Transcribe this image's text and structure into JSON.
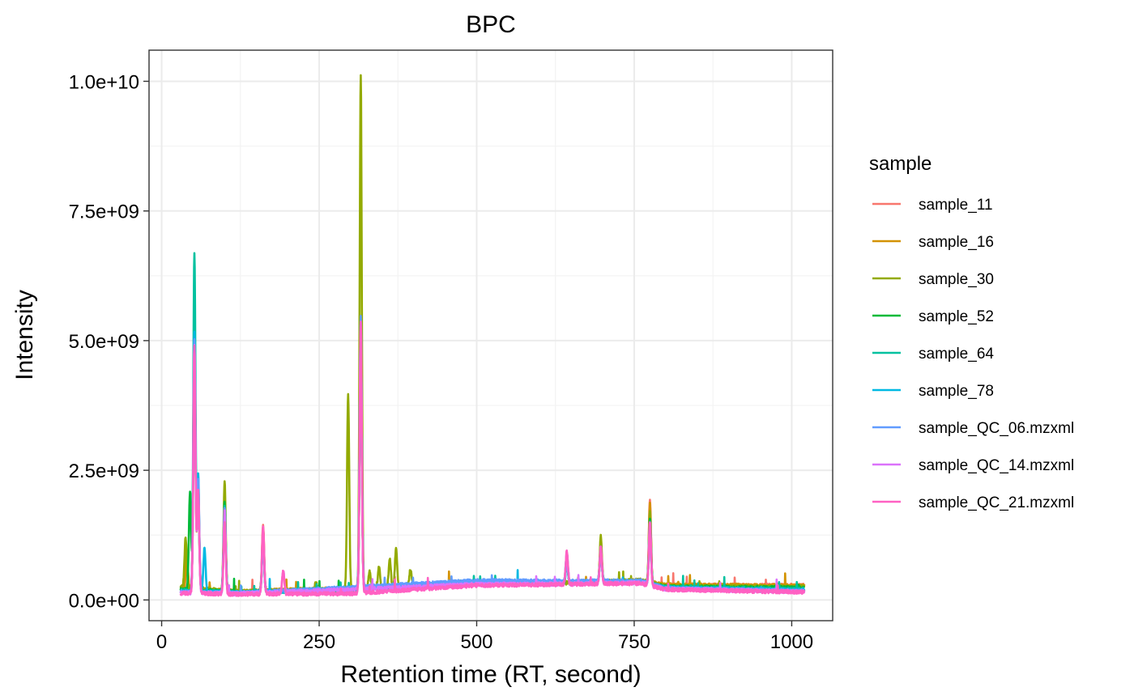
{
  "chart_data": {
    "type": "line",
    "title": "BPC",
    "xlabel": "Retention time (RT, second)",
    "ylabel": "Intensity",
    "xlim": [
      -20,
      1065
    ],
    "ylim": [
      -400000000,
      10600000000
    ],
    "x_ticks": [
      0,
      250,
      500,
      750,
      1000
    ],
    "x_tick_labels": [
      "0",
      "250",
      "500",
      "750",
      "1000"
    ],
    "y_ticks": [
      0,
      2500000000,
      5000000000,
      7500000000,
      10000000000
    ],
    "y_tick_labels": [
      "0.0e+00",
      "2.5e+09",
      "5.0e+09",
      "7.5e+09",
      "1.0e+10"
    ],
    "grid": true,
    "legend_title": "sample",
    "legend_position": "right",
    "series": [
      {
        "name": "sample_11",
        "color": "#F8766D",
        "baseline": [
          [
            30,
            200000000
          ],
          [
            120,
            150000000
          ],
          [
            300,
            200000000
          ],
          [
            500,
            330000000
          ],
          [
            650,
            320000000
          ],
          [
            760,
            360000000
          ],
          [
            800,
            280000000
          ],
          [
            1020,
            280000000
          ]
        ],
        "peaks": [
          [
            40,
            800000000
          ],
          [
            52,
            4800000000
          ],
          [
            58,
            2100000000
          ],
          [
            100,
            1700000000
          ],
          [
            161,
            1450000000
          ],
          [
            316,
            5200000000
          ],
          [
            643,
            850000000
          ],
          [
            697,
            1000000000
          ],
          [
            775,
            1900000000
          ]
        ]
      },
      {
        "name": "sample_16",
        "color": "#D39200",
        "baseline": [
          [
            30,
            220000000
          ],
          [
            120,
            170000000
          ],
          [
            300,
            220000000
          ],
          [
            500,
            340000000
          ],
          [
            650,
            330000000
          ],
          [
            760,
            370000000
          ],
          [
            800,
            290000000
          ],
          [
            1020,
            270000000
          ]
        ],
        "peaks": [
          [
            40,
            900000000
          ],
          [
            52,
            4600000000
          ],
          [
            58,
            2000000000
          ],
          [
            100,
            1800000000
          ],
          [
            161,
            1350000000
          ],
          [
            316,
            5100000000
          ],
          [
            643,
            800000000
          ],
          [
            697,
            1100000000
          ],
          [
            775,
            1800000000
          ]
        ]
      },
      {
        "name": "sample_30",
        "color": "#93AA00",
        "baseline": [
          [
            30,
            250000000
          ],
          [
            120,
            160000000
          ],
          [
            300,
            210000000
          ],
          [
            500,
            330000000
          ],
          [
            650,
            330000000
          ],
          [
            760,
            380000000
          ],
          [
            800,
            260000000
          ],
          [
            1020,
            250000000
          ]
        ],
        "peaks": [
          [
            38,
            1200000000
          ],
          [
            52,
            5000000000
          ],
          [
            58,
            1900000000
          ],
          [
            100,
            2300000000
          ],
          [
            161,
            1100000000
          ],
          [
            245,
            350000000
          ],
          [
            296,
            3950000000
          ],
          [
            316,
            10100000000
          ],
          [
            330,
            550000000
          ],
          [
            345,
            650000000
          ],
          [
            362,
            800000000
          ],
          [
            372,
            1000000000
          ],
          [
            395,
            600000000
          ],
          [
            697,
            1230000000
          ],
          [
            775,
            1700000000
          ]
        ]
      },
      {
        "name": "sample_52",
        "color": "#00BA38",
        "baseline": [
          [
            30,
            200000000
          ],
          [
            120,
            150000000
          ],
          [
            300,
            200000000
          ],
          [
            500,
            320000000
          ],
          [
            650,
            320000000
          ],
          [
            760,
            350000000
          ],
          [
            800,
            250000000
          ],
          [
            1020,
            230000000
          ]
        ],
        "peaks": [
          [
            45,
            2100000000
          ],
          [
            52,
            5500000000
          ],
          [
            58,
            2000000000
          ],
          [
            100,
            1900000000
          ],
          [
            161,
            1200000000
          ],
          [
            316,
            5300000000
          ],
          [
            643,
            700000000
          ],
          [
            697,
            1000000000
          ],
          [
            775,
            1600000000
          ]
        ]
      },
      {
        "name": "sample_64",
        "color": "#00C19F",
        "baseline": [
          [
            30,
            180000000
          ],
          [
            120,
            140000000
          ],
          [
            300,
            200000000
          ],
          [
            500,
            330000000
          ],
          [
            650,
            330000000
          ],
          [
            760,
            350000000
          ],
          [
            800,
            240000000
          ],
          [
            1020,
            200000000
          ]
        ],
        "peaks": [
          [
            52,
            6700000000
          ],
          [
            58,
            2200000000
          ],
          [
            100,
            1800000000
          ],
          [
            161,
            1200000000
          ],
          [
            316,
            5300000000
          ],
          [
            643,
            900000000
          ],
          [
            697,
            1000000000
          ],
          [
            775,
            1500000000
          ]
        ]
      },
      {
        "name": "sample_78",
        "color": "#00B9E3",
        "baseline": [
          [
            30,
            160000000
          ],
          [
            120,
            140000000
          ],
          [
            300,
            220000000
          ],
          [
            500,
            350000000
          ],
          [
            650,
            340000000
          ],
          [
            760,
            360000000
          ],
          [
            800,
            230000000
          ],
          [
            1020,
            180000000
          ]
        ],
        "peaks": [
          [
            52,
            5200000000
          ],
          [
            58,
            2400000000
          ],
          [
            68,
            1000000000
          ],
          [
            100,
            1700000000
          ],
          [
            161,
            1100000000
          ],
          [
            316,
            5400000000
          ],
          [
            643,
            700000000
          ],
          [
            697,
            900000000
          ],
          [
            775,
            1300000000
          ]
        ]
      },
      {
        "name": "sample_QC_06.mzxml",
        "color": "#619CFF",
        "baseline": [
          [
            30,
            150000000
          ],
          [
            120,
            130000000
          ],
          [
            300,
            240000000
          ],
          [
            500,
            370000000
          ],
          [
            650,
            360000000
          ],
          [
            760,
            370000000
          ],
          [
            800,
            220000000
          ],
          [
            1020,
            170000000
          ]
        ],
        "peaks": [
          [
            52,
            5000000000
          ],
          [
            58,
            2300000000
          ],
          [
            100,
            1800000000
          ],
          [
            161,
            1100000000
          ],
          [
            316,
            5500000000
          ],
          [
            643,
            700000000
          ],
          [
            697,
            900000000
          ],
          [
            775,
            1300000000
          ]
        ]
      },
      {
        "name": "sample_QC_14.mzxml",
        "color": "#DB72FB",
        "baseline": [
          [
            30,
            140000000
          ],
          [
            120,
            120000000
          ],
          [
            300,
            200000000
          ],
          [
            500,
            300000000
          ],
          [
            650,
            310000000
          ],
          [
            760,
            330000000
          ],
          [
            800,
            210000000
          ],
          [
            1020,
            160000000
          ]
        ],
        "peaks": [
          [
            52,
            4900000000
          ],
          [
            58,
            2000000000
          ],
          [
            100,
            1700000000
          ],
          [
            161,
            1300000000
          ],
          [
            193,
            550000000
          ],
          [
            316,
            5300000000
          ],
          [
            643,
            900000000
          ],
          [
            697,
            1000000000
          ],
          [
            775,
            1400000000
          ]
        ]
      },
      {
        "name": "sample_QC_21.mzxml",
        "color": "#FF61C3",
        "baseline": [
          [
            30,
            130000000
          ],
          [
            120,
            110000000
          ],
          [
            300,
            120000000
          ],
          [
            500,
            280000000
          ],
          [
            650,
            300000000
          ],
          [
            760,
            320000000
          ],
          [
            800,
            200000000
          ],
          [
            1020,
            150000000
          ]
        ],
        "peaks": [
          [
            52,
            4900000000
          ],
          [
            58,
            2100000000
          ],
          [
            100,
            1500000000
          ],
          [
            161,
            1400000000
          ],
          [
            193,
            550000000
          ],
          [
            316,
            5400000000
          ],
          [
            643,
            950000000
          ],
          [
            697,
            1050000000
          ],
          [
            775,
            1500000000
          ]
        ]
      }
    ]
  }
}
